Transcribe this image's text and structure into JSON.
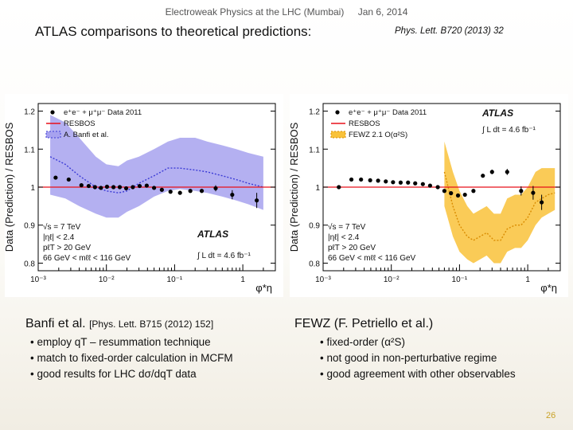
{
  "header": {
    "conference": "Electroweak Physics at the LHC (Mumbai)",
    "date": "Jan 6, 2014"
  },
  "title": "ATLAS comparisons to theoretical predictions:",
  "reference": "Phys. Lett. B720 (2013) 32",
  "colors": {
    "data": "#000000",
    "resbos": "#e8111a",
    "band_left": "#a7a2ef",
    "line_left": "#3b3bd6",
    "band_right": "#f9c23a",
    "line_right": "#d98b00",
    "slide_number": "#c9a227"
  },
  "chart_data": [
    {
      "type": "line",
      "xscale": "log",
      "xlim": [
        0.001,
        3.0
      ],
      "ylim": [
        0.78,
        1.22
      ],
      "xticks": [
        "10⁻³",
        "10⁻²",
        "10⁻¹",
        "1"
      ],
      "yticks": [
        "0.8",
        "0.9",
        "1",
        "1.1",
        "1.2"
      ],
      "ylabel": "Data (Prediction) / RESBOS",
      "xlabel": "φ*η",
      "legend": [
        "e⁺e⁻ + μ⁺μ⁻ Data 2011",
        "RESBOS",
        "A. Banfi et al."
      ],
      "legend_position": "top-left",
      "experiment": "ATLAS",
      "luminosity": "∫ L dt = 4.6 fb⁻¹",
      "cuts": [
        "√s = 7 TeV",
        "|ηℓ| < 2.4",
        "pℓT > 20 GeV",
        "66 GeV < mℓℓ < 116 GeV"
      ],
      "series": [
        {
          "name": "e⁺e⁻ + μ⁺μ⁻ Data 2011",
          "kind": "points",
          "x": [
            0.0018,
            0.0028,
            0.0043,
            0.0055,
            0.0068,
            0.0083,
            0.0102,
            0.0127,
            0.0157,
            0.0195,
            0.0244,
            0.0307,
            0.039,
            0.05,
            0.065,
            0.087,
            0.12,
            0.17,
            0.25,
            0.4,
            0.7,
            1.6
          ],
          "y": [
            1.025,
            1.02,
            1.005,
            1.003,
            1.0,
            0.998,
            1.001,
            1.0,
            1.0,
            0.997,
            1.0,
            1.003,
            1.004,
            0.998,
            0.993,
            0.988,
            0.985,
            0.99,
            0.99,
            0.997,
            0.98,
            0.965
          ],
          "err": [
            0.004,
            0.004,
            0.003,
            0.003,
            0.003,
            0.003,
            0.003,
            0.003,
            0.003,
            0.003,
            0.003,
            0.003,
            0.003,
            0.003,
            0.003,
            0.003,
            0.004,
            0.004,
            0.005,
            0.008,
            0.012,
            0.02
          ]
        },
        {
          "name": "RESBOS",
          "kind": "line",
          "x": [
            0.001,
            3.0
          ],
          "y": [
            1.0,
            1.0
          ]
        },
        {
          "name": "A. Banfi et al.",
          "kind": "band",
          "x": [
            0.0015,
            0.0025,
            0.004,
            0.007,
            0.01,
            0.015,
            0.02,
            0.03,
            0.05,
            0.08,
            0.12,
            0.2,
            0.3,
            0.5,
            0.8,
            1.2,
            2.0
          ],
          "y": [
            1.08,
            1.06,
            1.03,
            1.0,
            0.99,
            0.985,
            0.99,
            1.01,
            1.03,
            1.05,
            1.05,
            1.045,
            1.04,
            1.03,
            1.02,
            1.01,
            1.0
          ],
          "lower": [
            0.98,
            0.97,
            0.95,
            0.93,
            0.92,
            0.92,
            0.935,
            0.95,
            0.975,
            0.99,
            0.995,
            0.99,
            0.985,
            0.975,
            0.965,
            0.955,
            0.94
          ],
          "upper": [
            1.19,
            1.17,
            1.13,
            1.08,
            1.06,
            1.055,
            1.07,
            1.08,
            1.1,
            1.12,
            1.13,
            1.13,
            1.12,
            1.11,
            1.1,
            1.09,
            1.08
          ]
        }
      ]
    },
    {
      "type": "line",
      "xscale": "log",
      "xlim": [
        0.001,
        3.0
      ],
      "ylim": [
        0.78,
        1.22
      ],
      "xticks": [
        "10⁻³",
        "10⁻²",
        "10⁻¹",
        "1"
      ],
      "yticks": [
        "0.8",
        "0.9",
        "1",
        "1.1",
        "1.2"
      ],
      "ylabel": "Data (Prediction) / RESBOS",
      "xlabel": "φ*η",
      "legend": [
        "e⁺e⁻ + μ⁺μ⁻ Data 2011",
        "RESBOS",
        "FEWZ 2.1 O(α²S)"
      ],
      "legend_position": "top-left",
      "experiment": "ATLAS",
      "luminosity": "∫ L dt = 4.6 fb⁻¹",
      "cuts": [
        "√s = 7 TeV",
        "|ηℓ| < 2.4",
        "pℓT > 20 GeV",
        "66 GeV < mℓℓ < 116 GeV"
      ],
      "series": [
        {
          "name": "e⁺e⁻ + μ⁺μ⁻ Data 2011",
          "kind": "points",
          "x": [
            0.0017,
            0.0026,
            0.0036,
            0.0049,
            0.0064,
            0.0083,
            0.0106,
            0.0137,
            0.0176,
            0.0224,
            0.029,
            0.037,
            0.048,
            0.06,
            0.075,
            0.095,
            0.12,
            0.16,
            0.22,
            0.3,
            0.5,
            0.8,
            1.2,
            1.6
          ],
          "y": [
            1.0,
            1.02,
            1.02,
            1.018,
            1.017,
            1.015,
            1.013,
            1.012,
            1.012,
            1.01,
            1.008,
            1.004,
            1.0,
            0.99,
            0.984,
            0.978,
            0.98,
            0.99,
            1.03,
            1.04,
            1.04,
            0.99,
            0.985,
            0.96
          ],
          "err": [
            0.004,
            0.004,
            0.003,
            0.003,
            0.003,
            0.003,
            0.003,
            0.003,
            0.003,
            0.003,
            0.003,
            0.003,
            0.003,
            0.003,
            0.003,
            0.003,
            0.004,
            0.004,
            0.005,
            0.006,
            0.008,
            0.012,
            0.018,
            0.02
          ]
        },
        {
          "name": "RESBOS",
          "kind": "line",
          "x": [
            0.001,
            3.0
          ],
          "y": [
            1.0,
            1.0
          ]
        },
        {
          "name": "FEWZ 2.1 O(α²S)",
          "kind": "band",
          "x": [
            0.06,
            0.08,
            0.1,
            0.13,
            0.16,
            0.2,
            0.25,
            0.32,
            0.4,
            0.5,
            0.65,
            0.8,
            1.0,
            1.3,
            1.6,
            2.0,
            2.5
          ],
          "y": [
            1.04,
            0.95,
            0.9,
            0.87,
            0.86,
            0.87,
            0.88,
            0.86,
            0.86,
            0.89,
            0.9,
            0.9,
            0.92,
            0.96,
            0.97,
            0.98,
            0.985
          ],
          "lower": [
            0.95,
            0.87,
            0.83,
            0.81,
            0.8,
            0.81,
            0.82,
            0.8,
            0.8,
            0.83,
            0.84,
            0.84,
            0.86,
            0.9,
            0.92,
            0.93,
            0.94
          ],
          "upper": [
            1.12,
            1.04,
            0.99,
            0.95,
            0.93,
            0.94,
            0.95,
            0.93,
            0.93,
            0.97,
            0.98,
            0.98,
            1.0,
            1.04,
            1.05,
            1.05,
            1.05
          ]
        }
      ]
    }
  ],
  "left_caption": {
    "main": "Banfi et al.",
    "ref": "[Phys. Lett. B715 (2012) 152]"
  },
  "left_bullets": [
    "• employ qT – resummation technique",
    "• match to fixed-order calculation in MCFM",
    "• good results for LHC dσ/dqT data"
  ],
  "right_caption": {
    "main": "FEWZ   (F. Petriello et al.)"
  },
  "right_bullets": [
    "• fixed-order  (α²S)",
    "• not good in non-perturbative regime",
    "• good agreement with other observables"
  ],
  "slide_number": "26"
}
